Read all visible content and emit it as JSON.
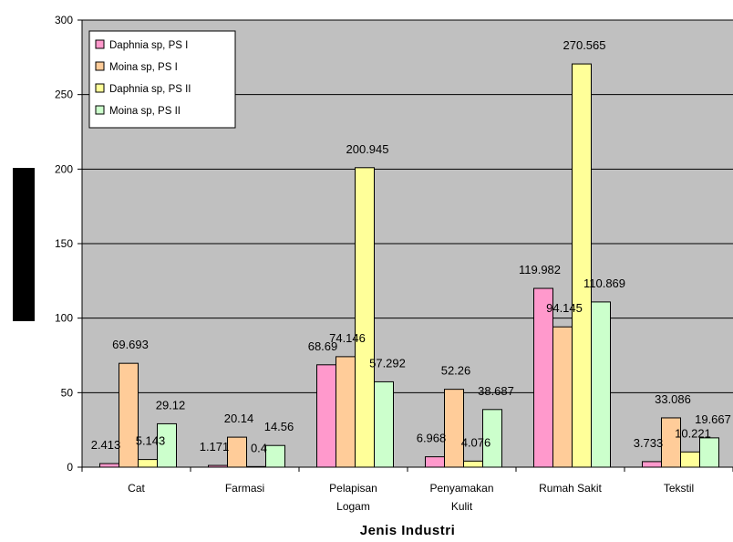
{
  "chart_data": {
    "type": "bar",
    "title": "",
    "ylabel": "",
    "xlabel": "Jenis Industri",
    "ylim": [
      0,
      300
    ],
    "yticks": [
      "0",
      "50",
      "100",
      "150",
      "200",
      "250",
      "300"
    ],
    "grid": true,
    "legend_position": "top-left",
    "plot_background": "#c0c0c0",
    "categories": [
      [
        "Cat"
      ],
      [
        "Farmasi"
      ],
      [
        "Pelapisan",
        "Logam"
      ],
      [
        "Penyamakan",
        "Kulit"
      ],
      [
        "Rumah Sakit"
      ],
      [
        "Tekstil"
      ]
    ],
    "series": [
      {
        "name": "Daphnia sp, PS I",
        "color": "#ff99cc",
        "values": [
          2.413,
          1.171,
          68.69,
          6.968,
          119.982,
          3.733
        ],
        "labels": [
          "2.413",
          "1.171",
          "68.69",
          "6.968",
          "119.982",
          "3.733"
        ]
      },
      {
        "name": "Moina sp, PS I",
        "color": "#ffcc99",
        "values": [
          69.693,
          20.14,
          74.146,
          52.26,
          94.145,
          33.086
        ],
        "labels": [
          "69.693",
          "20.14",
          "74.146",
          "52.26",
          "94.145",
          "33.086"
        ]
      },
      {
        "name": "Daphnia sp, PS II",
        "color": "#ffff99",
        "values": [
          5.143,
          0.4,
          200.945,
          4.076,
          270.565,
          10.221
        ],
        "labels": [
          "5.143",
          "0.4",
          "200.945",
          "4.076",
          "270.565",
          "10.221"
        ]
      },
      {
        "name": "Moina sp, PS II",
        "color": "#ccffcc",
        "values": [
          29.12,
          14.56,
          57.292,
          38.687,
          110.869,
          19.667
        ],
        "labels": [
          "29.12",
          "14.56",
          "57.292",
          "38.687",
          "110.869",
          "19.667"
        ]
      }
    ]
  }
}
